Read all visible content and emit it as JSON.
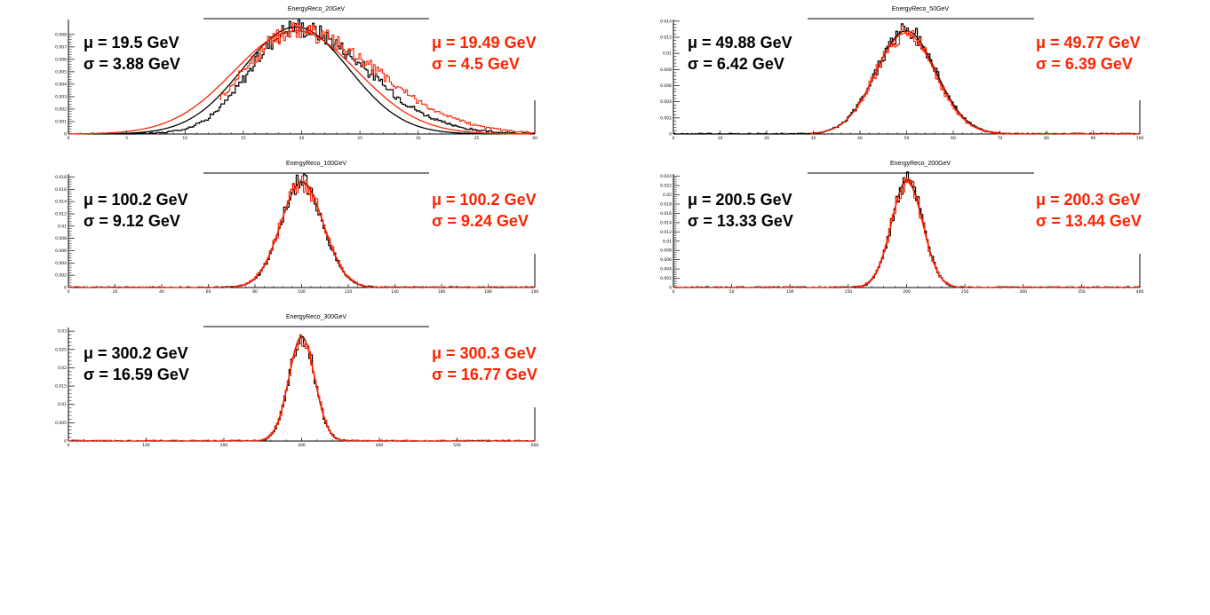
{
  "canvas": {
    "background": "#ffffff"
  },
  "colors": {
    "data": "#000000",
    "fit": "#ff2200"
  },
  "chart_data": [
    {
      "type": "histogram",
      "title": "EnergyReco_20GeV",
      "xlim": [
        0,
        40
      ],
      "ylim": [
        0,
        0.0092
      ],
      "x_ticks": [
        "0",
        "5",
        "10",
        "15",
        "20",
        "25",
        "30",
        "35",
        "40"
      ],
      "y_ticks": [
        "0",
        "0.001",
        "0.002",
        "0.003",
        "0.004",
        "0.005",
        "0.006",
        "0.007",
        "0.008"
      ],
      "series": [
        {
          "name": "",
          "color": "#000000",
          "mean": 19.5,
          "sigma": 3.88,
          "peak": 0.0086,
          "range": [
            2,
            40
          ]
        },
        {
          "name": "",
          "color": "#ff2200",
          "mean": 19.49,
          "sigma": 4.5,
          "peak": 0.0083,
          "range": [
            13,
            40
          ]
        }
      ],
      "stats_black": [
        "μ = 19.5 GeV",
        "σ = 3.88 GeV"
      ],
      "stats_red": [
        "μ = 19.49 GeV",
        "σ = 4.5 GeV"
      ]
    },
    {
      "type": "histogram",
      "title": "EnergyReco_50GeV",
      "xlim": [
        0,
        100
      ],
      "ylim": [
        0,
        0.0142
      ],
      "x_ticks": [
        "0",
        "10",
        "20",
        "30",
        "40",
        "50",
        "60",
        "70",
        "80",
        "90",
        "100"
      ],
      "y_ticks": [
        "0",
        "0.002",
        "0.004",
        "0.006",
        "0.008",
        "0.01",
        "0.012",
        "0.014"
      ],
      "series": [
        {
          "name": "",
          "color": "#000000",
          "mean": 49.88,
          "sigma": 6.42,
          "peak": 0.0128,
          "range": [
            0,
            100
          ]
        },
        {
          "name": "",
          "color": "#ff2200",
          "mean": 49.77,
          "sigma": 6.39,
          "peak": 0.0125,
          "range": [
            39,
            100
          ]
        }
      ],
      "stats_black": [
        "μ = 49.88 GeV",
        "σ = 6.42 GeV"
      ],
      "stats_red": [
        "μ = 49.77 GeV",
        "σ = 6.39 GeV"
      ]
    },
    {
      "type": "histogram",
      "title": "EnergyReco_100GeV",
      "xlim": [
        0,
        200
      ],
      "ylim": [
        0,
        0.0185
      ],
      "x_ticks": [
        "0",
        "20",
        "40",
        "60",
        "80",
        "100",
        "120",
        "140",
        "160",
        "180",
        "200"
      ],
      "y_ticks": [
        "0",
        "0.002",
        "0.004",
        "0.006",
        "0.008",
        "0.01",
        "0.012",
        "0.014",
        "0.016",
        "0.018"
      ],
      "series": [
        {
          "name": "",
          "color": "#000000",
          "mean": 100.2,
          "sigma": 9.12,
          "peak": 0.0172,
          "range": [
            0,
            200
          ]
        },
        {
          "name": "",
          "color": "#ff2200",
          "mean": 100.2,
          "sigma": 9.24,
          "peak": 0.017,
          "range": [
            0,
            200
          ]
        }
      ],
      "stats_black": [
        "μ = 100.2 GeV",
        "σ = 9.12 GeV"
      ],
      "stats_red": [
        "μ = 100.2 GeV",
        "σ = 9.24 GeV"
      ]
    },
    {
      "type": "histogram",
      "title": "EnergyReco_200GeV",
      "xlim": [
        0,
        400
      ],
      "ylim": [
        0,
        0.0245
      ],
      "x_ticks": [
        "0",
        "50",
        "100",
        "150",
        "200",
        "250",
        "300",
        "350",
        "400"
      ],
      "y_ticks": [
        "0",
        "0.002",
        "0.004",
        "0.006",
        "0.008",
        "0.01",
        "0.012",
        "0.014",
        "0.016",
        "0.018",
        "0.02",
        "0.022",
        "0.024"
      ],
      "series": [
        {
          "name": "",
          "color": "#000000",
          "mean": 200.5,
          "sigma": 13.33,
          "peak": 0.0232,
          "range": [
            0,
            400
          ]
        },
        {
          "name": "",
          "color": "#ff2200",
          "mean": 200.3,
          "sigma": 13.44,
          "peak": 0.0228,
          "range": [
            0,
            400
          ]
        }
      ],
      "stats_black": [
        "μ = 200.5 GeV",
        "σ = 13.33 GeV"
      ],
      "stats_red": [
        "μ = 200.3 GeV",
        "σ = 13.44 GeV"
      ]
    },
    {
      "type": "histogram",
      "title": "EnergyReco_300GeV",
      "xlim": [
        0,
        600
      ],
      "ylim": [
        0,
        0.031
      ],
      "x_ticks": [
        "0",
        "100",
        "200",
        "300",
        "400",
        "500",
        "600"
      ],
      "y_ticks": [
        "0",
        "0.005",
        "0.01",
        "0.015",
        "0.02",
        "0.025",
        "0.03"
      ],
      "series": [
        {
          "name": "",
          "color": "#000000",
          "mean": 300.2,
          "sigma": 16.59,
          "peak": 0.0285,
          "range": [
            0,
            600
          ]
        },
        {
          "name": "",
          "color": "#ff2200",
          "mean": 300.3,
          "sigma": 16.77,
          "peak": 0.0282,
          "range": [
            0,
            600
          ]
        }
      ],
      "stats_black": [
        "μ = 300.2 GeV",
        "σ = 16.59 GeV"
      ],
      "stats_red": [
        "μ = 300.3 GeV",
        "σ = 16.77 GeV"
      ]
    }
  ]
}
